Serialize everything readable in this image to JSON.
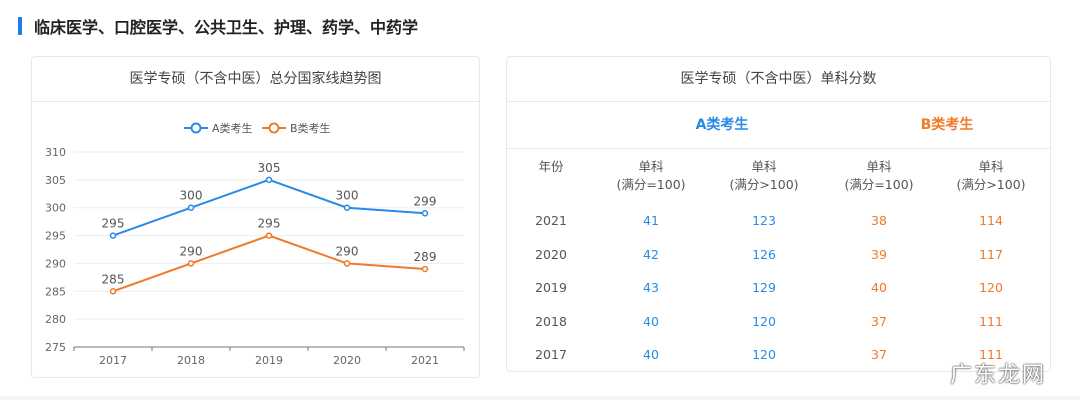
{
  "section": {
    "title": "临床医学、口腔医学、公共卫生、护理、药学、中药学"
  },
  "colors": {
    "accent": "#1a7df0",
    "series_a": "#2a8ae8",
    "series_b": "#f07a2a"
  },
  "chart_data": {
    "type": "line",
    "title": "医学专硕（不含中医）总分国家线趋势图",
    "categories": [
      "2017",
      "2018",
      "2019",
      "2020",
      "2021"
    ],
    "series": [
      {
        "name": "A类考生",
        "values": [
          295,
          300,
          305,
          300,
          299
        ],
        "color": "#2a8ae8"
      },
      {
        "name": "B类考生",
        "values": [
          285,
          290,
          295,
          290,
          289
        ],
        "color": "#f07a2a"
      }
    ],
    "ylim": [
      275,
      310
    ],
    "yticks": [
      "275",
      "280",
      "285",
      "290",
      "295",
      "300",
      "305",
      "310"
    ],
    "grid": true,
    "legend": "top-center",
    "data_labels": true
  },
  "table": {
    "title": "医学专硕（不含中医）单科分数",
    "group_a": "A类考生",
    "group_b": "B类考生",
    "year_header": "年份",
    "headers": [
      [
        "单科",
        "(满分=100)"
      ],
      [
        "单科",
        "(满分>100)"
      ],
      [
        "单科",
        "(满分=100)"
      ],
      [
        "单科",
        "(满分>100)"
      ]
    ],
    "rows": [
      [
        "2021",
        "41",
        "123",
        "38",
        "114"
      ],
      [
        "2020",
        "42",
        "126",
        "39",
        "117"
      ],
      [
        "2019",
        "43",
        "129",
        "40",
        "120"
      ],
      [
        "2018",
        "40",
        "120",
        "37",
        "111"
      ],
      [
        "2017",
        "40",
        "120",
        "37",
        "111"
      ]
    ]
  },
  "watermark": "广东龙网"
}
